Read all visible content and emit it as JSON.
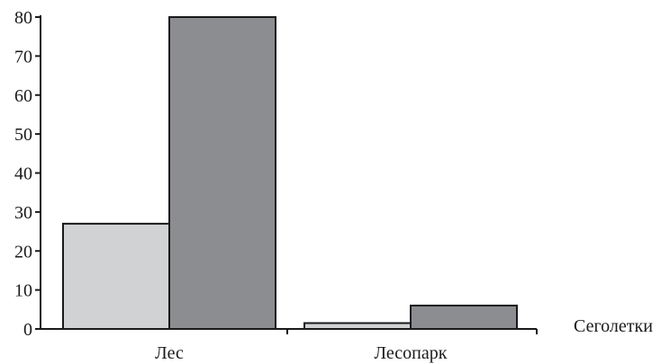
{
  "chart_data": {
    "type": "bar",
    "categories": [
      "Лес",
      "Лесопарк"
    ],
    "series": [
      {
        "values": [
          27,
          1.5
        ],
        "color": "#d1d2d4"
      },
      {
        "values": [
          80,
          6
        ],
        "color": "#8c8d91"
      }
    ],
    "ylim": [
      0,
      80
    ],
    "yticks": [
      0,
      10,
      20,
      30,
      40,
      50,
      60,
      70,
      80
    ],
    "xlabel": "Сеголетки",
    "ylabel": "",
    "title": "",
    "grid": false
  }
}
